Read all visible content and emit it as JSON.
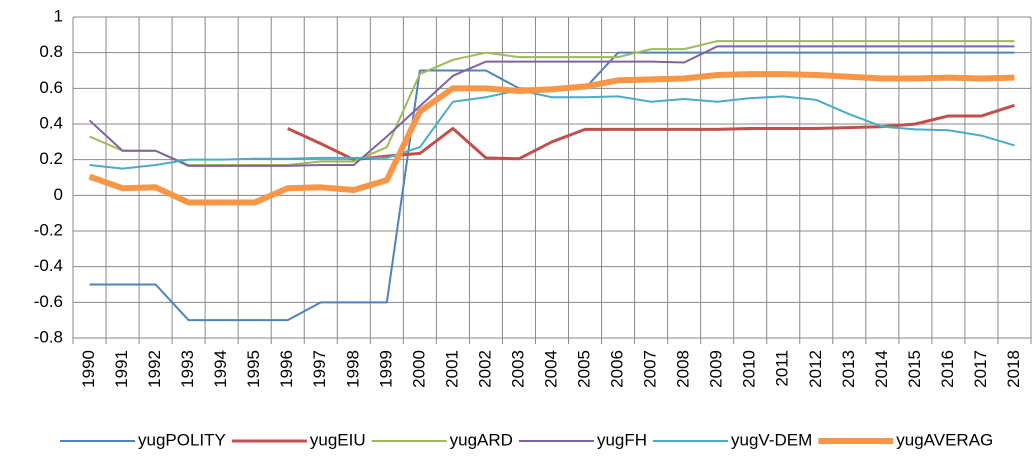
{
  "chart_data": {
    "type": "line",
    "categories": [
      "1990",
      "1991",
      "1992",
      "1993",
      "1994",
      "1995",
      "1996",
      "1997",
      "1998",
      "1999",
      "2000",
      "2001",
      "2002",
      "2003",
      "2004",
      "2005",
      "2006",
      "2007",
      "2008",
      "2009",
      "2010",
      "2011",
      "2012",
      "2013",
      "2014",
      "2015",
      "2016",
      "2017",
      "2018"
    ],
    "series": [
      {
        "name": "yugPOLITY",
        "color": "#4f81bd",
        "width": 2,
        "values": [
          -0.5,
          -0.5,
          -0.5,
          -0.7,
          -0.7,
          -0.7,
          -0.7,
          -0.6,
          -0.6,
          -0.6,
          0.7,
          0.7,
          0.7,
          0.6,
          0.6,
          0.6,
          0.8,
          0.8,
          0.8,
          0.8,
          0.8,
          0.8,
          0.8,
          0.8,
          0.8,
          0.8,
          0.8,
          0.8,
          0.8
        ]
      },
      {
        "name": "yugEIU",
        "color": "#c0504d",
        "width": 3,
        "values": [
          null,
          null,
          null,
          null,
          null,
          null,
          0.375,
          0.29,
          0.2,
          0.22,
          0.235,
          0.375,
          0.21,
          0.205,
          0.3,
          0.37,
          0.37,
          0.37,
          0.37,
          0.37,
          0.375,
          0.375,
          0.375,
          0.38,
          0.385,
          0.4,
          0.445,
          0.445,
          0.505
        ]
      },
      {
        "name": "yugARD",
        "color": "#9bbb59",
        "width": 2,
        "values": [
          0.33,
          0.25,
          0.25,
          0.17,
          0.17,
          0.17,
          0.17,
          0.19,
          0.19,
          0.27,
          0.68,
          0.76,
          0.8,
          0.775,
          0.775,
          0.775,
          0.775,
          0.82,
          0.82,
          0.865,
          0.865,
          0.865,
          0.865,
          0.865,
          0.865,
          0.865,
          0.865,
          0.865,
          0.865
        ]
      },
      {
        "name": "yugFH",
        "color": "#8064a2",
        "width": 2,
        "values": [
          0.42,
          0.25,
          0.25,
          0.165,
          0.165,
          0.165,
          0.165,
          0.17,
          0.17,
          0.33,
          0.5,
          0.67,
          0.75,
          0.75,
          0.75,
          0.75,
          0.75,
          0.75,
          0.745,
          0.835,
          0.835,
          0.835,
          0.835,
          0.835,
          0.835,
          0.835,
          0.835,
          0.835,
          0.835
        ]
      },
      {
        "name": "yugV-DEM",
        "color": "#4bacc6",
        "width": 2,
        "values": [
          0.17,
          0.15,
          0.17,
          0.2,
          0.2,
          0.205,
          0.205,
          0.21,
          0.21,
          0.21,
          0.27,
          0.525,
          0.55,
          0.59,
          0.55,
          0.55,
          0.555,
          0.525,
          0.54,
          0.525,
          0.545,
          0.555,
          0.535,
          0.455,
          0.385,
          0.37,
          0.365,
          0.335,
          0.28
        ]
      },
      {
        "name": "yugAVERAG",
        "color": "#f79646",
        "width": 6,
        "values": [
          0.105,
          0.04,
          0.045,
          -0.04,
          -0.04,
          -0.04,
          0.04,
          0.045,
          0.03,
          0.085,
          0.47,
          0.6,
          0.6,
          0.585,
          0.595,
          0.61,
          0.645,
          0.65,
          0.655,
          0.675,
          0.68,
          0.68,
          0.675,
          0.665,
          0.655,
          0.655,
          0.66,
          0.655,
          0.66
        ]
      }
    ],
    "ylim": [
      -0.8,
      1
    ],
    "yticks": [
      -0.8,
      -0.6,
      -0.4,
      -0.2,
      0,
      0.2,
      0.4,
      0.6,
      0.8,
      1
    ],
    "grid": true,
    "legend": "bottom"
  }
}
